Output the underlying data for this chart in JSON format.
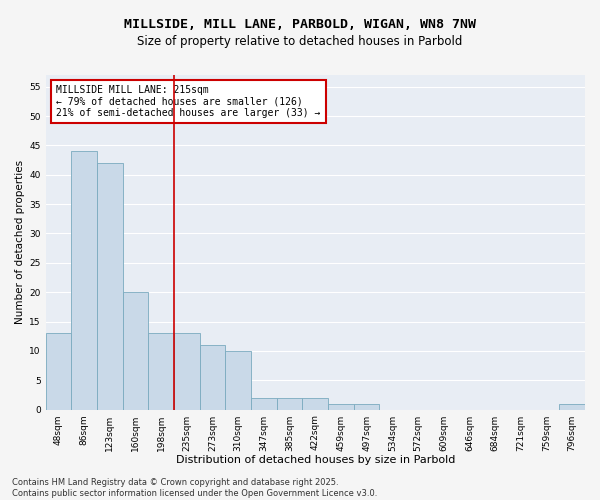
{
  "title1": "MILLSIDE, MILL LANE, PARBOLD, WIGAN, WN8 7NW",
  "title2": "Size of property relative to detached houses in Parbold",
  "xlabel": "Distribution of detached houses by size in Parbold",
  "ylabel": "Number of detached properties",
  "categories": [
    "48sqm",
    "86sqm",
    "123sqm",
    "160sqm",
    "198sqm",
    "235sqm",
    "273sqm",
    "310sqm",
    "347sqm",
    "385sqm",
    "422sqm",
    "459sqm",
    "497sqm",
    "534sqm",
    "572sqm",
    "609sqm",
    "646sqm",
    "684sqm",
    "721sqm",
    "759sqm",
    "796sqm"
  ],
  "values": [
    13,
    44,
    42,
    20,
    13,
    13,
    11,
    10,
    2,
    2,
    2,
    1,
    1,
    0,
    0,
    0,
    0,
    0,
    0,
    0,
    1
  ],
  "bar_color": "#c9d9e8",
  "bar_edge_color": "#7aaabf",
  "vline_x": 4.5,
  "vline_color": "#cc0000",
  "annotation_text": "MILLSIDE MILL LANE: 215sqm\n← 79% of detached houses are smaller (126)\n21% of semi-detached houses are larger (33) →",
  "annotation_box_color": "#cc0000",
  "ylim": [
    0,
    57
  ],
  "yticks": [
    0,
    5,
    10,
    15,
    20,
    25,
    30,
    35,
    40,
    45,
    50,
    55
  ],
  "bg_color": "#e8edf4",
  "grid_color": "#ffffff",
  "fig_bg_color": "#f5f5f5",
  "footer": "Contains HM Land Registry data © Crown copyright and database right 2025.\nContains public sector information licensed under the Open Government Licence v3.0.",
  "title1_fontsize": 9.5,
  "title2_fontsize": 8.5,
  "xlabel_fontsize": 8,
  "ylabel_fontsize": 7.5,
  "tick_fontsize": 6.5,
  "annotation_fontsize": 7,
  "footer_fontsize": 6
}
